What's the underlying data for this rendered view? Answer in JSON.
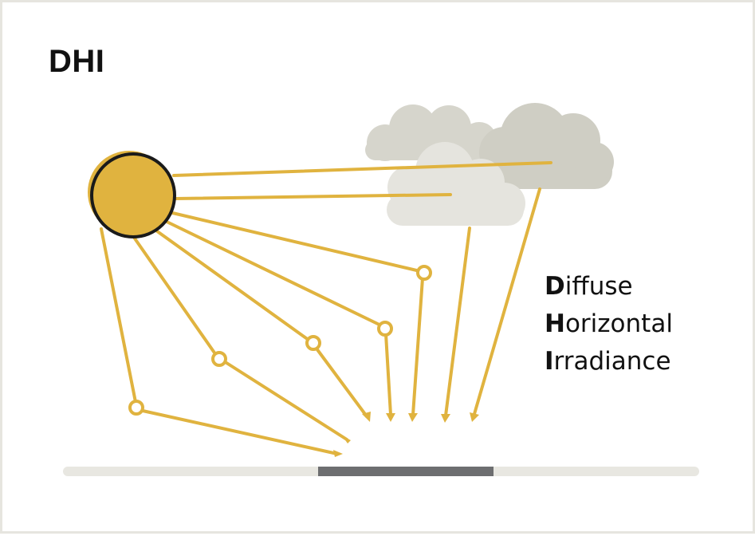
{
  "title": "DHI",
  "legend": [
    {
      "initial": "D",
      "rest": "iffuse"
    },
    {
      "initial": "H",
      "rest": "orizontal"
    },
    {
      "initial": "I",
      "rest": "rradiance"
    }
  ],
  "colors": {
    "sun": "#e0b33f",
    "sun_outline": "#1a1a1a",
    "ray": "#e0b33f",
    "cloud_light": "#e5e4de",
    "cloud_mid": "#d6d5cc",
    "cloud_dark": "#cfcec4",
    "ground": "#e8e7e1",
    "ground_segment": "#6d6e70"
  },
  "icons": [
    "sun-icon",
    "cloud-icon",
    "scatter-point-icon",
    "arrowhead-icon"
  ]
}
